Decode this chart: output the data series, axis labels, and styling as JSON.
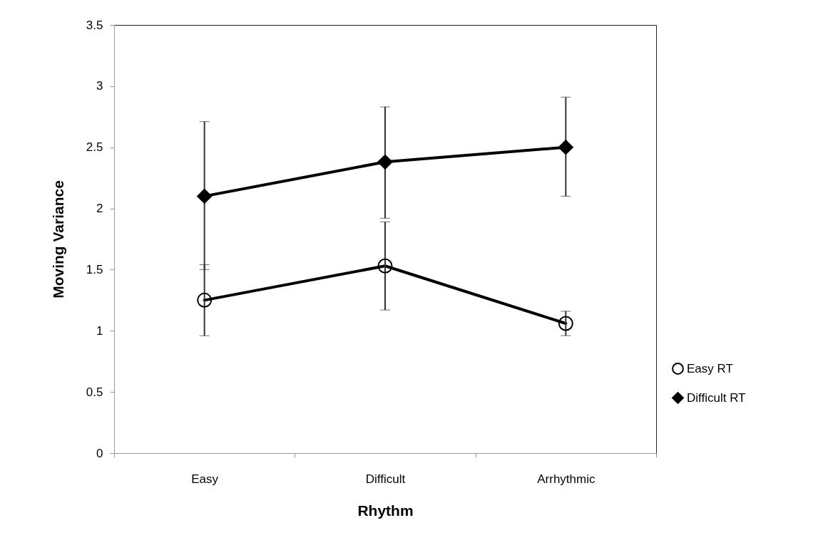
{
  "chart_data": {
    "type": "line",
    "xlabel": "Rhythm",
    "ylabel": "Moving Variance",
    "categories": [
      "Easy",
      "Difficult",
      "Arrhythmic"
    ],
    "series": [
      {
        "name": "Easy RT",
        "color": "#000000",
        "marker": "circle",
        "values": [
          1.25,
          1.53,
          1.06
        ],
        "errors": [
          [
            0.96,
            1.54
          ],
          [
            1.17,
            1.89
          ],
          [
            0.96,
            1.16
          ]
        ]
      },
      {
        "name": "Difficult RT",
        "color": "#000000",
        "marker": "diamond",
        "values": [
          2.1,
          2.38,
          2.5
        ],
        "errors": [
          [
            1.5,
            2.71
          ],
          [
            1.92,
            2.83
          ],
          [
            2.1,
            2.91
          ]
        ]
      }
    ],
    "ylim": [
      0,
      3.5
    ],
    "yticks": [
      0,
      0.5,
      1,
      1.5,
      2,
      2.5,
      3,
      3.5
    ],
    "grid": false,
    "legend": "right"
  }
}
